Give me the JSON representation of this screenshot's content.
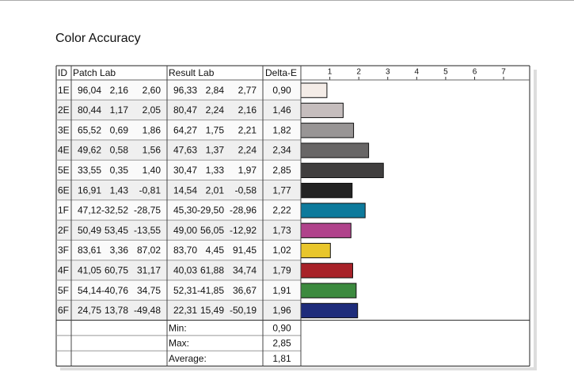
{
  "chart_data": {
    "type": "bar",
    "title": "Color Accuracy",
    "columns": [
      "ID",
      "Patch Lab",
      "Result Lab",
      "Delta-E"
    ],
    "categories": [
      "1E",
      "2E",
      "3E",
      "4E",
      "5E",
      "6E",
      "1F",
      "2F",
      "3F",
      "4F",
      "5F",
      "6F"
    ],
    "patch_lab": [
      [
        "96,04",
        "2,16",
        "2,60"
      ],
      [
        "80,44",
        "1,17",
        "2,05"
      ],
      [
        "65,52",
        "0,69",
        "1,86"
      ],
      [
        "49,62",
        "0,58",
        "1,56"
      ],
      [
        "33,55",
        "0,35",
        "1,40"
      ],
      [
        "16,91",
        "1,43",
        "-0,81"
      ],
      [
        "47,12",
        "-32,52",
        "-28,75"
      ],
      [
        "50,49",
        "53,45",
        "-13,55"
      ],
      [
        "83,61",
        "3,36",
        "87,02"
      ],
      [
        "41,05",
        "60,75",
        "31,17"
      ],
      [
        "54,14",
        "-40,76",
        "34,75"
      ],
      [
        "24,75",
        "13,78",
        "-49,48"
      ]
    ],
    "result_lab": [
      [
        "96,33",
        "2,84",
        "2,77"
      ],
      [
        "80,47",
        "2,24",
        "2,16"
      ],
      [
        "64,27",
        "1,75",
        "2,21"
      ],
      [
        "47,63",
        "1,37",
        "2,24"
      ],
      [
        "30,47",
        "1,33",
        "1,97"
      ],
      [
        "14,54",
        "2,01",
        "-0,58"
      ],
      [
        "45,30",
        "-29,50",
        "-28,96"
      ],
      [
        "49,00",
        "56,05",
        "-12,92"
      ],
      [
        "83,70",
        "4,45",
        "91,45"
      ],
      [
        "40,03",
        "61,88",
        "34,74"
      ],
      [
        "52,31",
        "-41,85",
        "36,67"
      ],
      [
        "22,31",
        "15,49",
        "-50,19"
      ]
    ],
    "values": [
      0.9,
      1.46,
      1.82,
      2.34,
      2.85,
      1.77,
      2.22,
      1.73,
      1.02,
      1.79,
      1.91,
      1.96
    ],
    "value_labels": [
      "0,90",
      "1,46",
      "1,82",
      "2,34",
      "2,85",
      "1,77",
      "2,22",
      "1,73",
      "1,02",
      "1,79",
      "1,91",
      "1,96"
    ],
    "colors": [
      "#f4ece7",
      "#c5bdbd",
      "#989595",
      "#686666",
      "#403e3e",
      "#232323",
      "#0d7a9c",
      "#b0438b",
      "#e9c62b",
      "#a82229",
      "#3c8a3f",
      "#1e2c7b"
    ],
    "xlim": [
      0,
      7.9
    ],
    "xticks": [
      1,
      2,
      3,
      4,
      5,
      6,
      7
    ],
    "summary": [
      {
        "label": "Min:",
        "value": "0,90"
      },
      {
        "label": "Max:",
        "value": "2,85"
      },
      {
        "label": "Average:",
        "value": "1,81"
      }
    ]
  }
}
